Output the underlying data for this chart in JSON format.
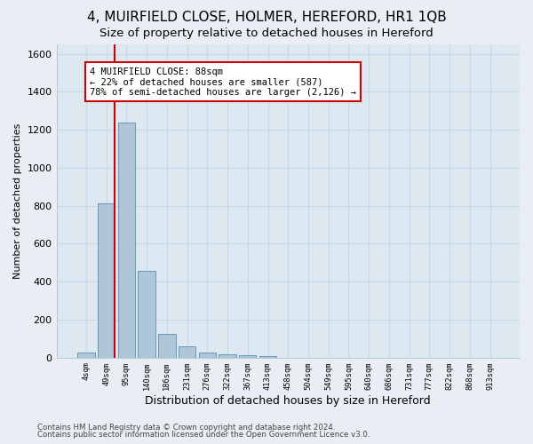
{
  "title": "4, MUIRFIELD CLOSE, HOLMER, HEREFORD, HR1 1QB",
  "subtitle": "Size of property relative to detached houses in Hereford",
  "xlabel": "Distribution of detached houses by size in Hereford",
  "ylabel": "Number of detached properties",
  "footnote1": "Contains HM Land Registry data © Crown copyright and database right 2024.",
  "footnote2": "Contains public sector information licensed under the Open Government Licence v3.0.",
  "bar_labels": [
    "4sqm",
    "49sqm",
    "95sqm",
    "140sqm",
    "186sqm",
    "231sqm",
    "276sqm",
    "322sqm",
    "367sqm",
    "413sqm",
    "458sqm",
    "504sqm",
    "549sqm",
    "595sqm",
    "640sqm",
    "686sqm",
    "731sqm",
    "777sqm",
    "822sqm",
    "868sqm",
    "913sqm"
  ],
  "bar_values": [
    25,
    810,
    1240,
    455,
    125,
    60,
    28,
    18,
    12,
    8,
    0,
    0,
    0,
    0,
    0,
    0,
    0,
    0,
    0,
    0,
    0
  ],
  "bar_color": "#aec6d8",
  "bar_edge_color": "#6699bb",
  "ylim": [
    0,
    1650
  ],
  "yticks": [
    0,
    200,
    400,
    600,
    800,
    1000,
    1200,
    1400,
    1600
  ],
  "vline_x_idx": 1,
  "vline_color": "#cc0000",
  "annotation_text": "4 MUIRFIELD CLOSE: 88sqm\n← 22% of detached houses are smaller (587)\n78% of semi-detached houses are larger (2,126) →",
  "annotation_box_color": "#cc0000",
  "bg_color": "#e8eef4",
  "plot_bg_color": "#dde8f0",
  "title_fontsize": 11,
  "subtitle_fontsize": 9.5,
  "grid_color": "#c8d8e8"
}
